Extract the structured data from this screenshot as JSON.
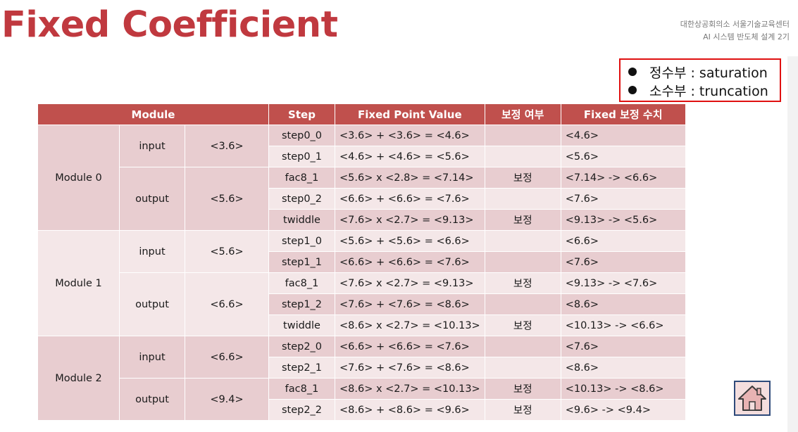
{
  "slide": {
    "title": "Fixed Coefficient",
    "org_line1": "대한상공회의소 서울기술교육센터",
    "org_line2": "AI 시스템 반도체 설계 2기"
  },
  "notes": [
    {
      "text": "정수부 : saturation"
    },
    {
      "text": "소수부 : truncation"
    }
  ],
  "table": {
    "headers": {
      "module": "Module",
      "step": "Step",
      "fixed_point_value": "Fixed Point Value",
      "correction": "보정 여부",
      "fixed_correction": "Fixed 보정 수치"
    },
    "modules": [
      {
        "name": "Module 0",
        "groups": [
          {
            "io": "input",
            "format": "<3.6>",
            "rows": [
              {
                "step": "step0_0",
                "value": "<3.6> + <3.6> = <4.6>",
                "corr": "",
                "fixed": "<4.6>"
              },
              {
                "step": "step0_1",
                "value": "<4.6> + <4.6> = <5.6>",
                "corr": "",
                "fixed": "<5.6>"
              }
            ]
          },
          {
            "io": "output",
            "format": "<5.6>",
            "rows": [
              {
                "step": "fac8_1",
                "value": "<5.6> x <2.8> = <7.14>",
                "corr": "보정",
                "fixed": "<7.14> -> <6.6>"
              },
              {
                "step": "step0_2",
                "value": "<6.6> + <6.6> = <7.6>",
                "corr": "",
                "fixed": "<7.6>"
              },
              {
                "step": "twiddle",
                "value": "<7.6> x <2.7> = <9.13>",
                "corr": "보정",
                "fixed": "<9.13> -> <5.6>"
              }
            ]
          }
        ]
      },
      {
        "name": "Module 1",
        "groups": [
          {
            "io": "input",
            "format": "<5.6>",
            "rows": [
              {
                "step": "step1_0",
                "value": "<5.6> + <5.6> = <6.6>",
                "corr": "",
                "fixed": "<6.6>"
              },
              {
                "step": "step1_1",
                "value": "<6.6> + <6.6> = <7.6>",
                "corr": "",
                "fixed": "<7.6>"
              }
            ]
          },
          {
            "io": "output",
            "format": "<6.6>",
            "rows": [
              {
                "step": "fac8_1",
                "value": "<7.6> x <2.7> = <9.13>",
                "corr": "보정",
                "fixed": "<9.13> -> <7.6>"
              },
              {
                "step": "step1_2",
                "value": "<7.6> + <7.6> = <8.6>",
                "corr": "",
                "fixed": "<8.6>"
              },
              {
                "step": "twiddle",
                "value": "<8.6> x <2.7> = <10.13>",
                "corr": "보정",
                "fixed": "<10.13> -> <6.6>"
              }
            ]
          }
        ]
      },
      {
        "name": "Module 2",
        "groups": [
          {
            "io": "input",
            "format": "<6.6>",
            "rows": [
              {
                "step": "step2_0",
                "value": "<6.6> + <6.6> = <7.6>",
                "corr": "",
                "fixed": "<7.6>"
              },
              {
                "step": "step2_1",
                "value": "<7.6> + <7.6> = <8.6>",
                "corr": "",
                "fixed": "<8.6>"
              }
            ]
          },
          {
            "io": "output",
            "format": "<9.4>",
            "rows": [
              {
                "step": "fac8_1",
                "value": "<8.6> x <2.7> = <10.13>",
                "corr": "보정",
                "fixed": "<10.13> -> <8.6>"
              },
              {
                "step": "step2_2",
                "value": "<8.6> + <8.6> = <9.6>",
                "corr": "보정",
                "fixed": "<9.6> -> <9.4>"
              }
            ]
          }
        ]
      }
    ]
  },
  "home_button": {
    "icon": "home-icon"
  }
}
